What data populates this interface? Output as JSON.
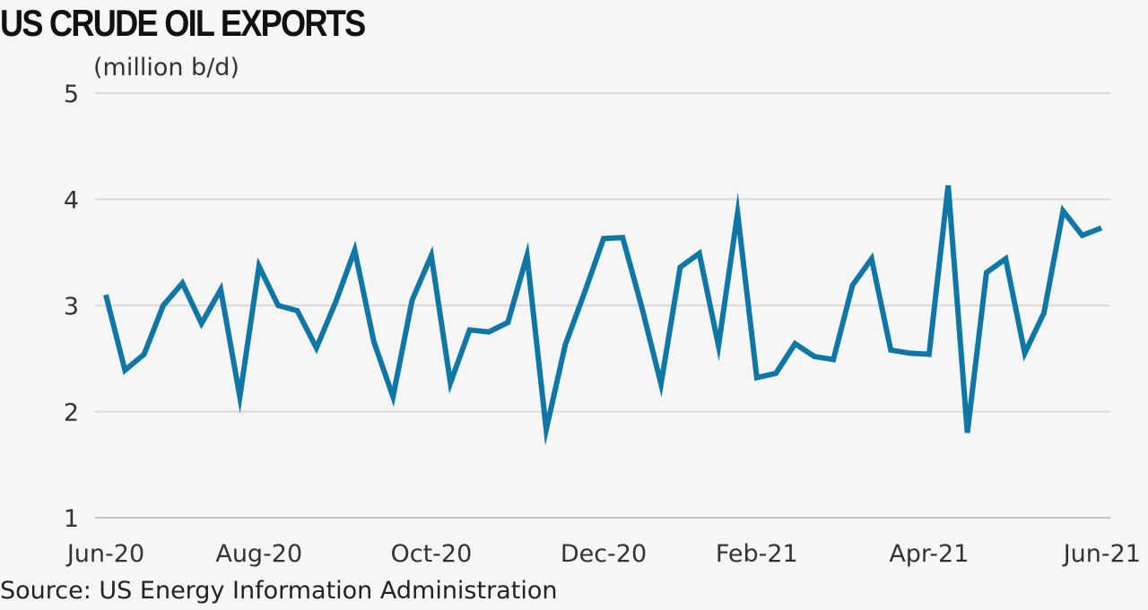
{
  "chart_data": {
    "type": "line",
    "title": "US CRUDE OIL EXPORTS",
    "ylabel": "(million b/d)",
    "source": "Source: US Energy Information Administration",
    "ylim": [
      1,
      5
    ],
    "yticks": [
      1,
      2,
      3,
      4,
      5
    ],
    "xtick_labels": [
      "Jun-20",
      "Aug-20",
      "Oct-20",
      "Dec-20",
      "Feb-21",
      "Apr-21",
      "Jun-21"
    ],
    "xtick_indices": [
      0,
      8,
      17,
      26,
      34,
      43,
      52
    ],
    "grid": true,
    "series": [
      {
        "color": "#0f77a5",
        "values": [
          3.1,
          2.39,
          2.54,
          3.0,
          3.21,
          2.83,
          3.15,
          2.14,
          3.37,
          3.0,
          2.95,
          2.6,
          3.03,
          3.52,
          2.66,
          2.14,
          3.05,
          3.47,
          2.27,
          2.77,
          2.75,
          2.84,
          3.47,
          1.83,
          2.63,
          3.12,
          3.63,
          3.64,
          2.98,
          2.26,
          3.36,
          3.49,
          2.62,
          3.87,
          2.32,
          2.36,
          2.64,
          2.52,
          2.49,
          3.19,
          3.44,
          2.58,
          2.55,
          2.54,
          4.13,
          1.8,
          3.31,
          3.44,
          2.55,
          2.93,
          3.89,
          3.66,
          3.73
        ]
      }
    ]
  }
}
